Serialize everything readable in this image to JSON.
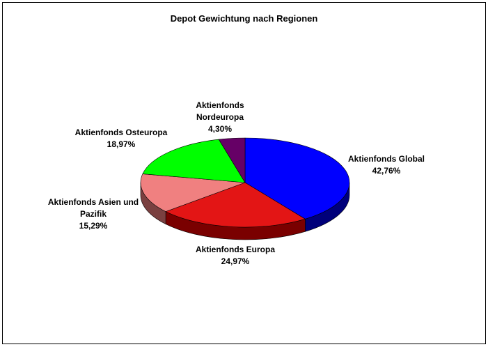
{
  "chart_data": {
    "type": "pie",
    "title": "Depot Gewichtung nach Regionen",
    "legend": "none",
    "slices": [
      {
        "label_lines": [
          "Aktienfonds Global"
        ],
        "value_label": "42,76%",
        "value": 42.76,
        "color": "#0000ff",
        "side_color": "#00007a"
      },
      {
        "label_lines": [
          "Aktienfonds Europa"
        ],
        "value_label": "24,97%",
        "value": 24.97,
        "color": "#e31515",
        "side_color": "#7a0000"
      },
      {
        "label_lines": [
          "Aktienfonds Asien und",
          "Pazifik"
        ],
        "value_label": "15,29%",
        "value": 15.29,
        "color": "#f08080",
        "side_color": "#7a4040"
      },
      {
        "label_lines": [
          "Aktienfonds Osteuropa"
        ],
        "value_label": "18,97%",
        "value": 18.97,
        "color": "#00ff00",
        "side_color": "#007a00"
      },
      {
        "label_lines": [
          "Aktienfonds",
          "Nordeuropa"
        ],
        "value_label": "4,30%",
        "value": 4.3,
        "color": "#660066",
        "side_color": "#330033"
      }
    ]
  }
}
